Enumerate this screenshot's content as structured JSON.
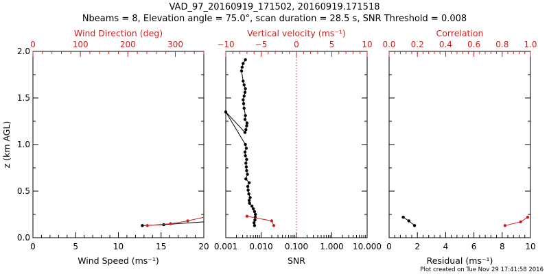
{
  "title_line1": "VAD_97_20160919_171502, 20160919.171518",
  "title_line2": "Nbeams = 8, Elevation angle = 75.0°, scan duration = 28.5 s, SNR Threshold = 0.008",
  "footer": "Plot created on Tue Nov 29 17:41:58 2016",
  "colors": {
    "black": "#000000",
    "red": "#cc2222"
  },
  "chart_data": [
    {
      "type": "line",
      "panel": "wind",
      "ylabel": "z (km AGL)",
      "ylim": [
        0,
        2.0
      ],
      "yticks": [
        "0.0",
        "0.5",
        "1.0",
        "1.5",
        "2.0"
      ],
      "bottom_axis": {
        "label": "Wind Speed (ms⁻¹)",
        "range": [
          0,
          20
        ],
        "ticks": [
          "0",
          "5",
          "10",
          "15",
          "20"
        ],
        "color": "#000000"
      },
      "top_axis": {
        "label": "Wind Direction (deg)",
        "range": [
          0,
          360
        ],
        "ticks": [
          "0",
          "100",
          "200",
          "300"
        ],
        "color": "#cc2222"
      },
      "series": [
        {
          "axis": "bottom",
          "color": "#000000",
          "markers": [
            true,
            true,
            false
          ],
          "x": [
            12.8,
            15.3,
            20.0
          ],
          "y": [
            0.13,
            0.14,
            0.17
          ]
        },
        {
          "axis": "top",
          "color": "#cc2222",
          "markers": [
            true,
            true,
            true,
            false
          ],
          "x": [
            241,
            290,
            326,
            360
          ],
          "y": [
            0.13,
            0.15,
            0.18,
            0.22
          ]
        }
      ]
    },
    {
      "type": "line",
      "panel": "snr",
      "ylim": [
        0,
        2.0
      ],
      "bottom_axis": {
        "label": "SNR",
        "scale": "log",
        "range": [
          0.001,
          10
        ],
        "ticks": [
          "0.001",
          "0.010",
          "0.100",
          "1.000",
          "10.000"
        ],
        "color": "#000000"
      },
      "top_axis": {
        "label": "Vertical velocity (ms⁻¹)",
        "range": [
          -10,
          10
        ],
        "ticks": [
          "−10",
          "−5",
          "0",
          "5",
          "10"
        ],
        "color": "#cc2222",
        "zero_line": true
      },
      "series": [
        {
          "axis": "bottom",
          "color": "#000000",
          "x": [
            0.0065,
            0.0063,
            0.0067,
            0.0068,
            0.0069,
            0.0065,
            0.006,
            0.0055,
            0.0047,
            0.0046,
            0.0049,
            0.0045,
            0.0043,
            0.0042,
            0.0046,
            0.0037,
            0.0041,
            0.0039,
            0.0038,
            0.0037,
            0.0039,
            0.0036,
            0.0035,
            0.0038,
            0.0036,
            0.001,
            0.0035,
            0.0037,
            0.0039,
            0.004,
            0.0035,
            0.0036,
            0.0033,
            0.0032,
            0.0031,
            0.0033,
            0.0035,
            0.0036,
            0.0033,
            0.0031,
            0.0028,
            0.0029,
            0.0031,
            0.0036
          ],
          "y": [
            0.13,
            0.16,
            0.19,
            0.22,
            0.25,
            0.28,
            0.31,
            0.34,
            0.37,
            0.4,
            0.43,
            0.47,
            0.51,
            0.55,
            0.59,
            0.63,
            0.68,
            0.72,
            0.76,
            0.8,
            0.84,
            0.88,
            0.92,
            0.96,
            1.0,
            1.35,
            1.13,
            1.16,
            1.2,
            1.23,
            1.27,
            1.31,
            1.39,
            1.44,
            1.48,
            1.52,
            1.56,
            1.6,
            1.64,
            1.68,
            1.79,
            1.83,
            1.87,
            1.91
          ]
        },
        {
          "axis": "top",
          "color": "#cc2222",
          "x": [
            -7.0,
            -3.5,
            -3.2
          ],
          "y": [
            0.23,
            0.18,
            0.13
          ]
        }
      ]
    },
    {
      "type": "line",
      "panel": "residual",
      "ylim": [
        0,
        2.0
      ],
      "bottom_axis": {
        "label": "Residual (ms⁻¹)",
        "range": [
          0,
          10
        ],
        "ticks": [
          "0",
          "2",
          "4",
          "6",
          "8",
          "10"
        ],
        "color": "#000000"
      },
      "top_axis": {
        "label": "Correlation",
        "range": [
          0,
          1.0
        ],
        "ticks": [
          "0.0",
          "0.2",
          "0.4",
          "0.6",
          "0.8",
          "1.0"
        ],
        "color": "#cc2222"
      },
      "series": [
        {
          "axis": "bottom",
          "color": "#000000",
          "x": [
            1.0,
            1.4,
            1.8
          ],
          "y": [
            0.22,
            0.18,
            0.13
          ]
        },
        {
          "axis": "top",
          "color": "#cc2222",
          "x": [
            0.82,
            0.93,
            0.98
          ],
          "y": [
            0.13,
            0.17,
            0.22
          ]
        }
      ]
    }
  ]
}
